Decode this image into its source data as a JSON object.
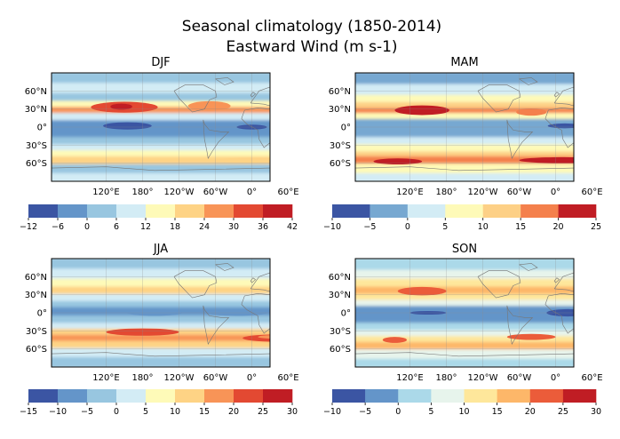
{
  "title": {
    "line1": "Seasonal climatology  (1850-2014)",
    "line2": "Eastward Wind (m s-1)"
  },
  "chart_data": [
    {
      "type": "heatmap",
      "title": "DJF",
      "lat_ticks": [
        "60°N",
        "30°N",
        "0°",
        "30°S",
        "60°S"
      ],
      "lon_ticks": [
        "120°E",
        "180°",
        "120°W",
        "60°W",
        "0°",
        "60°E"
      ],
      "colorbar": {
        "ticks": [
          "−12",
          "−6",
          "0",
          "6",
          "12",
          "18",
          "24",
          "30",
          "36",
          "42"
        ],
        "colors": [
          "#3b55a3",
          "#6495c9",
          "#98c6e0",
          "#d3ecf5",
          "#fefab8",
          "#fed385",
          "#f89457",
          "#e34932",
          "#c01d24"
        ]
      },
      "bands": [
        {
          "lat": 90,
          "level": 2
        },
        {
          "lat": 72,
          "level": 3
        },
        {
          "lat": 55,
          "level": 2
        },
        {
          "lat": 42,
          "level": 4
        },
        {
          "lat": 32,
          "level": 6
        },
        {
          "lat": 22,
          "level": 3
        },
        {
          "lat": 10,
          "level": 1
        },
        {
          "lat": -6,
          "level": 1
        },
        {
          "lat": -18,
          "level": 2
        },
        {
          "lat": -30,
          "level": 3
        },
        {
          "lat": -40,
          "level": 4
        },
        {
          "lat": -50,
          "level": 5
        },
        {
          "lat": -63,
          "level": 2
        },
        {
          "lat": -78,
          "level": 3
        },
        {
          "lat": -90,
          "level": 3
        }
      ],
      "blobs": [
        {
          "lon": 150,
          "lat": 33,
          "w": 55,
          "h": 9,
          "level": 7
        },
        {
          "lon": 145,
          "lat": 34,
          "w": 18,
          "h": 5,
          "level": 8
        },
        {
          "lon": 155,
          "lat": 2,
          "w": 40,
          "h": 6,
          "level": 0
        },
        {
          "lon": 290,
          "lat": 35,
          "w": 35,
          "h": 8,
          "level": 6
        },
        {
          "lon": 360,
          "lat": 0,
          "w": 25,
          "h": 4,
          "level": 0
        },
        {
          "lon": 360,
          "lat": -55,
          "w": 60,
          "h": 4,
          "level": 5
        }
      ]
    },
    {
      "type": "heatmap",
      "title": "MAM",
      "lat_ticks": [
        "60°N",
        "30°N",
        "0°",
        "30°S",
        "60°S"
      ],
      "lon_ticks": [
        "120°E",
        "180°",
        "120°W",
        "60°W",
        "0°",
        "60°E"
      ],
      "colorbar": {
        "ticks": [
          "−10",
          "−5",
          "0",
          "5",
          "10",
          "15",
          "20",
          "25"
        ],
        "colors": [
          "#3b55a3",
          "#77a8d1",
          "#d3ecf5",
          "#fefab8",
          "#fdd086",
          "#f4804c",
          "#c01d24"
        ]
      },
      "bands": [
        {
          "lat": 90,
          "level": 1
        },
        {
          "lat": 70,
          "level": 2
        },
        {
          "lat": 52,
          "level": 3
        },
        {
          "lat": 40,
          "level": 4
        },
        {
          "lat": 30,
          "level": 5
        },
        {
          "lat": 22,
          "level": 3
        },
        {
          "lat": 12,
          "level": 1
        },
        {
          "lat": -6,
          "level": 1
        },
        {
          "lat": -18,
          "level": 2
        },
        {
          "lat": -30,
          "level": 3
        },
        {
          "lat": -42,
          "level": 4
        },
        {
          "lat": -50,
          "level": 5
        },
        {
          "lat": -62,
          "level": 3
        },
        {
          "lat": -78,
          "level": 2
        },
        {
          "lat": -90,
          "level": 2
        }
      ],
      "blobs": [
        {
          "lon": 140,
          "lat": 28,
          "w": 45,
          "h": 8,
          "level": 6
        },
        {
          "lon": 140,
          "lat": 30,
          "w": 18,
          "h": 4,
          "level": 6
        },
        {
          "lon": 320,
          "lat": 25,
          "w": 25,
          "h": 6,
          "level": 5
        },
        {
          "lon": 375,
          "lat": 2,
          "w": 28,
          "h": 4,
          "level": 0
        },
        {
          "lon": 100,
          "lat": -57,
          "w": 40,
          "h": 5,
          "level": 6
        },
        {
          "lon": 370,
          "lat": -55,
          "w": 70,
          "h": 5,
          "level": 6
        }
      ]
    },
    {
      "type": "heatmap",
      "title": "JJA",
      "lat_ticks": [
        "60°N",
        "30°N",
        "0°",
        "30°S",
        "60°S"
      ],
      "lon_ticks": [
        "120°E",
        "180°",
        "120°W",
        "60°W",
        "0°",
        "60°E"
      ],
      "colorbar": {
        "ticks": [
          "−15",
          "−10",
          "−5",
          "0",
          "5",
          "10",
          "15",
          "20",
          "25",
          "30"
        ],
        "colors": [
          "#3b55a3",
          "#6495c9",
          "#98c6e0",
          "#d3ecf5",
          "#fefab8",
          "#fed385",
          "#f89457",
          "#e34932",
          "#c01d24"
        ]
      },
      "bands": [
        {
          "lat": 90,
          "level": 2
        },
        {
          "lat": 72,
          "level": 3
        },
        {
          "lat": 55,
          "level": 4
        },
        {
          "lat": 42,
          "level": 5
        },
        {
          "lat": 30,
          "level": 3
        },
        {
          "lat": 18,
          "level": 2
        },
        {
          "lat": 8,
          "level": 1
        },
        {
          "lat": -6,
          "level": 2
        },
        {
          "lat": -18,
          "level": 3
        },
        {
          "lat": -28,
          "level": 5
        },
        {
          "lat": -38,
          "level": 6
        },
        {
          "lat": -48,
          "level": 5
        },
        {
          "lat": -60,
          "level": 3
        },
        {
          "lat": -75,
          "level": 2
        },
        {
          "lat": -90,
          "level": 2
        }
      ],
      "blobs": [
        {
          "lon": 200,
          "lat": 0,
          "w": 45,
          "h": 5,
          "level": 1
        },
        {
          "lon": 335,
          "lat": 0,
          "w": 50,
          "h": 5,
          "level": 1
        },
        {
          "lon": 180,
          "lat": -32,
          "w": 60,
          "h": 6,
          "level": 7
        },
        {
          "lon": 400,
          "lat": -42,
          "w": 55,
          "h": 6,
          "level": 7
        },
        {
          "lon": 400,
          "lat": -40,
          "w": 30,
          "h": 3,
          "level": 6
        }
      ]
    },
    {
      "type": "heatmap",
      "title": "SON",
      "lat_ticks": [
        "60°N",
        "30°N",
        "0°",
        "30°S",
        "60°S"
      ],
      "lon_ticks": [
        "120°E",
        "180°",
        "120°W",
        "60°W",
        "0°",
        "60°E"
      ],
      "colorbar": {
        "ticks": [
          "−10",
          "−5",
          "0",
          "5",
          "10",
          "15",
          "20",
          "25",
          "30"
        ],
        "colors": [
          "#3b55a3",
          "#6495c9",
          "#abd9e9",
          "#e7f4ec",
          "#fee79b",
          "#fdb769",
          "#eb5c3a",
          "#c01d24"
        ]
      },
      "bands": [
        {
          "lat": 90,
          "level": 2
        },
        {
          "lat": 70,
          "level": 3
        },
        {
          "lat": 55,
          "level": 4
        },
        {
          "lat": 42,
          "level": 5
        },
        {
          "lat": 30,
          "level": 4
        },
        {
          "lat": 20,
          "level": 3
        },
        {
          "lat": 10,
          "level": 1
        },
        {
          "lat": -6,
          "level": 1
        },
        {
          "lat": -18,
          "level": 2
        },
        {
          "lat": -30,
          "level": 3
        },
        {
          "lat": -40,
          "level": 4
        },
        {
          "lat": -50,
          "level": 5
        },
        {
          "lat": -62,
          "level": 3
        },
        {
          "lat": -78,
          "level": 2
        },
        {
          "lat": -90,
          "level": 2
        }
      ],
      "blobs": [
        {
          "lon": 140,
          "lat": 36,
          "w": 40,
          "h": 7,
          "level": 6
        },
        {
          "lon": 150,
          "lat": 0,
          "w": 30,
          "h": 3,
          "level": 0
        },
        {
          "lon": 380,
          "lat": 0,
          "w": 35,
          "h": 6,
          "level": 0
        },
        {
          "lon": 320,
          "lat": -40,
          "w": 40,
          "h": 5,
          "level": 6
        },
        {
          "lon": 95,
          "lat": -45,
          "w": 20,
          "h": 5,
          "level": 6
        }
      ]
    }
  ]
}
